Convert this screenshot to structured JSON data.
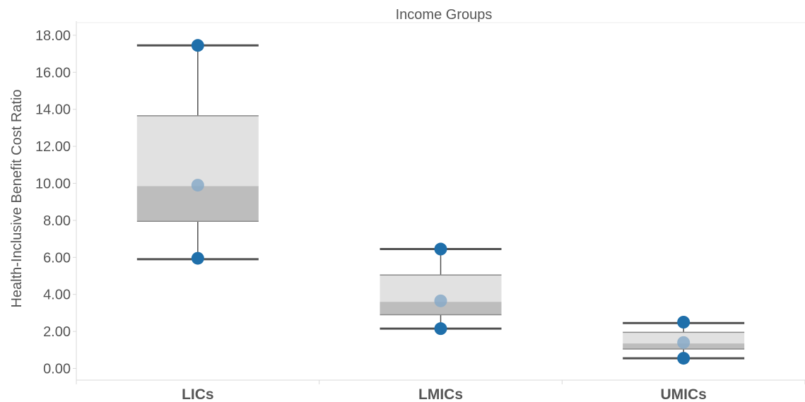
{
  "chart_data": {
    "type": "box",
    "title": "Income Groups",
    "ylabel": "Health-Inclusive Benefit Cost Ratio",
    "xlabel": "",
    "ylim": [
      -0.6,
      18.7
    ],
    "yticks": [
      0,
      2,
      4,
      6,
      8,
      10,
      12,
      14,
      16,
      18
    ],
    "ytick_labels": [
      "0.00",
      "2.00",
      "4.00",
      "6.00",
      "8.00",
      "10.00",
      "12.00",
      "14.00",
      "16.00",
      "18.00"
    ],
    "grid": false,
    "categories": [
      "LICs",
      "LMICs",
      "UMICs"
    ],
    "boxes": [
      {
        "category": "LICs",
        "min": 5.9,
        "q1": 7.95,
        "median": 9.85,
        "q3": 13.65,
        "max": 17.45,
        "points": [
          17.45,
          9.9,
          5.95
        ]
      },
      {
        "category": "LMICs",
        "min": 2.15,
        "q1": 2.9,
        "median": 3.6,
        "q3": 5.05,
        "max": 6.45,
        "points": [
          6.45,
          3.65,
          2.15
        ]
      },
      {
        "category": "UMICs",
        "min": 0.55,
        "q1": 1.05,
        "median": 1.35,
        "q3": 1.95,
        "max": 2.45,
        "points": [
          2.5,
          1.4,
          0.55
        ]
      }
    ],
    "colors": {
      "box_upper": "#e1e1e1",
      "box_lower": "#bdbdbd",
      "whisker": "#505050",
      "point_dark": "#1f6faa",
      "point_light": "#88aac8",
      "axis": "#d9d9d9",
      "text": "#555555"
    }
  }
}
